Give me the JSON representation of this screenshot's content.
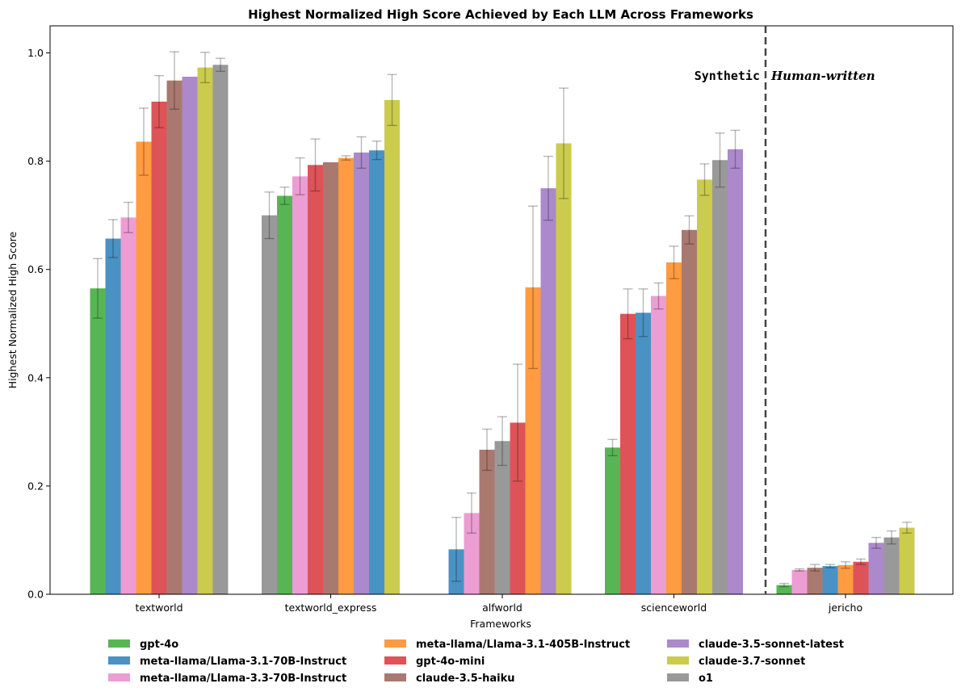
{
  "chart_data": {
    "type": "bar",
    "title": "Highest Normalized High Score Achieved by Each LLM Across Frameworks",
    "xlabel": "Frameworks",
    "ylabel": "Highest Normalized High Score",
    "ylim": [
      0,
      1.05
    ],
    "yticks": [
      "0.0",
      "0.2",
      "0.4",
      "0.6",
      "0.8",
      "1.0"
    ],
    "legend_position": "bottom-center",
    "annotations": {
      "left": "Synthetic",
      "right": "Human-written"
    },
    "models": [
      {
        "name": "gpt-4o",
        "color": "#3aa935"
      },
      {
        "name": "meta-llama/Llama-3.1-70B-Instruct",
        "color": "#2a7fba"
      },
      {
        "name": "meta-llama/Llama-3.3-70B-Instruct",
        "color": "#e98ccb"
      },
      {
        "name": "meta-llama/Llama-3.1-405B-Instruct",
        "color": "#ff8a1f"
      },
      {
        "name": "gpt-4o-mini",
        "color": "#d8353a"
      },
      {
        "name": "claude-3.5-haiku",
        "color": "#9a6257"
      },
      {
        "name": "claude-3.5-sonnet-latest",
        "color": "#9c74c2"
      },
      {
        "name": "claude-3.7-sonnet",
        "color": "#c2c22e"
      },
      {
        "name": "o1",
        "color": "#878787"
      }
    ],
    "frameworks": [
      {
        "name": "textworld",
        "bars": [
          {
            "model": "gpt-4o",
            "value": 0.565,
            "err": 0.055
          },
          {
            "model": "meta-llama/Llama-3.1-70B-Instruct",
            "value": 0.657,
            "err": 0.035
          },
          {
            "model": "meta-llama/Llama-3.3-70B-Instruct",
            "value": 0.696,
            "err": 0.028
          },
          {
            "model": "meta-llama/Llama-3.1-405B-Instruct",
            "value": 0.836,
            "err": 0.062
          },
          {
            "model": "gpt-4o-mini",
            "value": 0.91,
            "err": 0.048
          },
          {
            "model": "claude-3.5-haiku",
            "value": 0.949,
            "err": 0.053
          },
          {
            "model": "claude-3.5-sonnet-latest",
            "value": 0.956,
            "err": 0.0
          },
          {
            "model": "claude-3.7-sonnet",
            "value": 0.973,
            "err": 0.028
          },
          {
            "model": "o1",
            "value": 0.978,
            "err": 0.012
          }
        ]
      },
      {
        "name": "textworld_express",
        "bars": [
          {
            "model": "o1",
            "value": 0.7,
            "err": 0.043
          },
          {
            "model": "gpt-4o",
            "value": 0.736,
            "err": 0.016
          },
          {
            "model": "meta-llama/Llama-3.3-70B-Instruct",
            "value": 0.772,
            "err": 0.034
          },
          {
            "model": "gpt-4o-mini",
            "value": 0.793,
            "err": 0.048
          },
          {
            "model": "claude-3.5-haiku",
            "value": 0.798,
            "err": 0.0
          },
          {
            "model": "meta-llama/Llama-3.1-405B-Instruct",
            "value": 0.806,
            "err": 0.004
          },
          {
            "model": "claude-3.5-sonnet-latest",
            "value": 0.816,
            "err": 0.029
          },
          {
            "model": "meta-llama/Llama-3.1-70B-Instruct",
            "value": 0.82,
            "err": 0.017
          },
          {
            "model": "claude-3.7-sonnet",
            "value": 0.913,
            "err": 0.047
          }
        ]
      },
      {
        "name": "alfworld",
        "bars": [
          {
            "model": "gpt-4o",
            "value": 0.0,
            "err": 0.0
          },
          {
            "model": "meta-llama/Llama-3.1-70B-Instruct",
            "value": 0.083,
            "err": 0.059
          },
          {
            "model": "meta-llama/Llama-3.3-70B-Instruct",
            "value": 0.15,
            "err": 0.037
          },
          {
            "model": "claude-3.5-haiku",
            "value": 0.267,
            "err": 0.038
          },
          {
            "model": "o1",
            "value": 0.283,
            "err": 0.045
          },
          {
            "model": "gpt-4o-mini",
            "value": 0.317,
            "err": 0.108
          },
          {
            "model": "meta-llama/Llama-3.1-405B-Instruct",
            "value": 0.567,
            "err": 0.15
          },
          {
            "model": "claude-3.5-sonnet-latest",
            "value": 0.75,
            "err": 0.059
          },
          {
            "model": "claude-3.7-sonnet",
            "value": 0.833,
            "err": 0.102
          }
        ]
      },
      {
        "name": "scienceworld",
        "bars": [
          {
            "model": "gpt-4o",
            "value": 0.271,
            "err": 0.015
          },
          {
            "model": "gpt-4o-mini",
            "value": 0.518,
            "err": 0.046
          },
          {
            "model": "meta-llama/Llama-3.1-70B-Instruct",
            "value": 0.52,
            "err": 0.044
          },
          {
            "model": "meta-llama/Llama-3.3-70B-Instruct",
            "value": 0.551,
            "err": 0.024
          },
          {
            "model": "meta-llama/Llama-3.1-405B-Instruct",
            "value": 0.613,
            "err": 0.03
          },
          {
            "model": "claude-3.5-haiku",
            "value": 0.673,
            "err": 0.026
          },
          {
            "model": "claude-3.7-sonnet",
            "value": 0.766,
            "err": 0.029
          },
          {
            "model": "o1",
            "value": 0.802,
            "err": 0.05
          },
          {
            "model": "claude-3.5-sonnet-latest",
            "value": 0.822,
            "err": 0.035
          }
        ]
      },
      {
        "name": "jericho",
        "bars": [
          {
            "model": "gpt-4o",
            "value": 0.017,
            "err": 0.003
          },
          {
            "model": "meta-llama/Llama-3.3-70B-Instruct",
            "value": 0.045,
            "err": 0.002
          },
          {
            "model": "claude-3.5-haiku",
            "value": 0.049,
            "err": 0.006
          },
          {
            "model": "meta-llama/Llama-3.1-70B-Instruct",
            "value": 0.052,
            "err": 0.003
          },
          {
            "model": "meta-llama/Llama-3.1-405B-Instruct",
            "value": 0.054,
            "err": 0.006
          },
          {
            "model": "gpt-4o-mini",
            "value": 0.06,
            "err": 0.005
          },
          {
            "model": "claude-3.5-sonnet-latest",
            "value": 0.095,
            "err": 0.01
          },
          {
            "model": "o1",
            "value": 0.105,
            "err": 0.012
          },
          {
            "model": "claude-3.7-sonnet",
            "value": 0.123,
            "err": 0.01
          }
        ]
      }
    ]
  }
}
